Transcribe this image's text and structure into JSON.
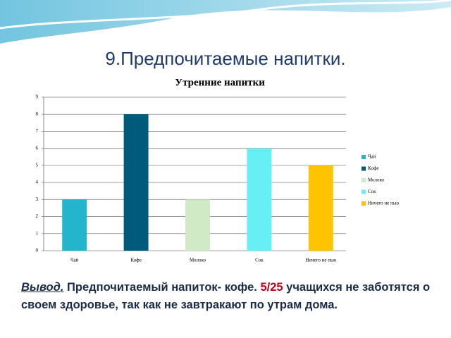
{
  "slide_title": "9.Предпочитаемые напитки.",
  "chart_data": {
    "type": "bar",
    "title": "Утренние напитки",
    "categories": [
      "Чай",
      "Кофе",
      "Молоко",
      "Сок",
      "Ничего не пью"
    ],
    "values": [
      3,
      8,
      3,
      6,
      5
    ],
    "colors": [
      "#23b5cc",
      "#005a7a",
      "#cfeac4",
      "#66f0f5",
      "#ffc400"
    ],
    "ylim": [
      0,
      9
    ],
    "yticks": [
      0,
      1,
      2,
      3,
      4,
      5,
      6,
      7,
      8,
      9
    ],
    "grid": true,
    "legend": "right"
  },
  "conclusion": {
    "label": "Вывод.",
    "text1": "Предпочитаемый напиток- кофе.",
    "highlight": "5/25",
    "text2": "учащихся не заботятся о своем здоровье, так как не завтракают по утрам дома."
  }
}
